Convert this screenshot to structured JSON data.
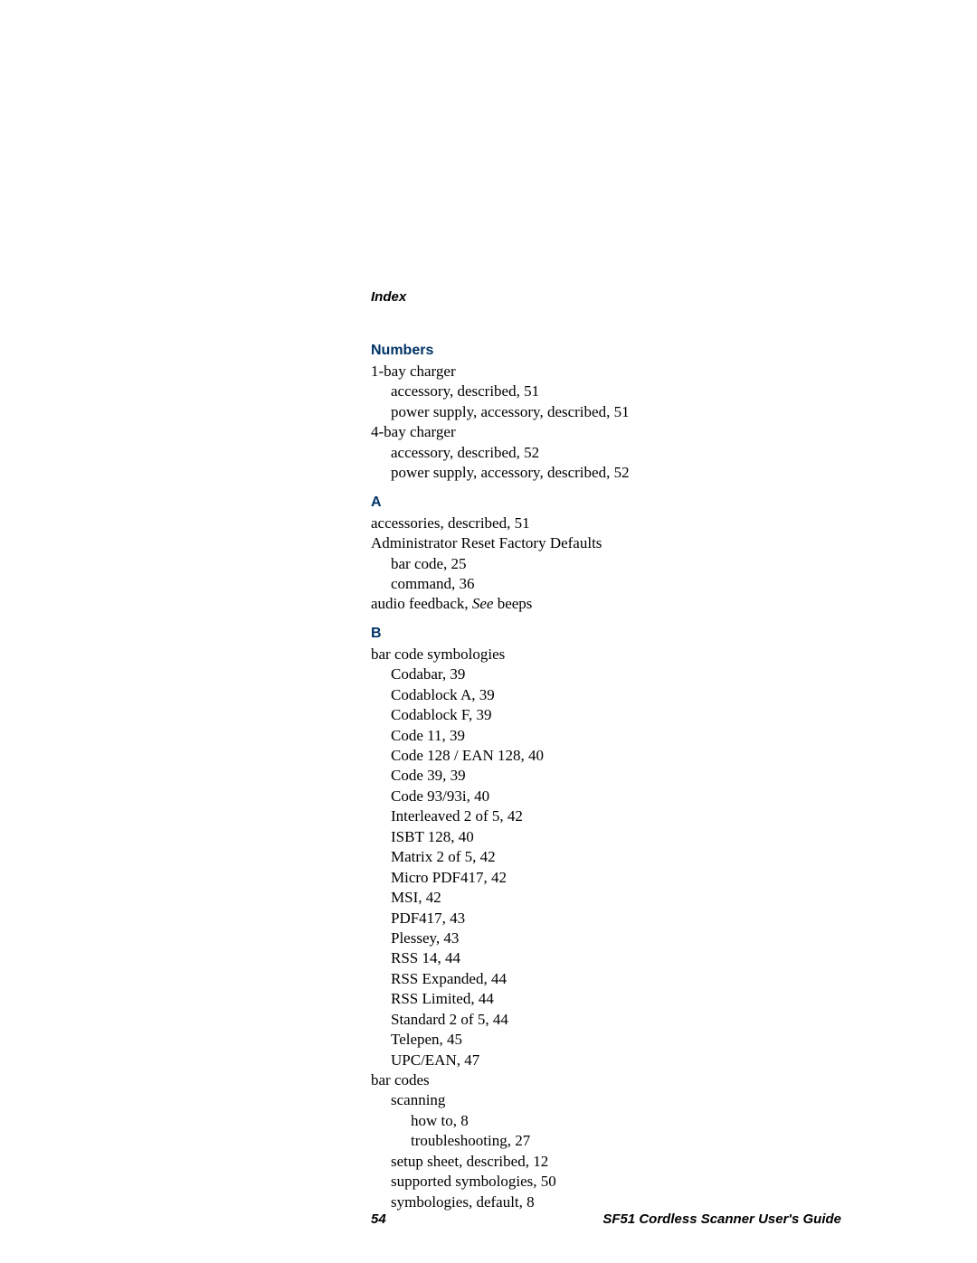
{
  "header": {
    "title": "Index"
  },
  "sections": {
    "numbers": {
      "letter": "Numbers",
      "entries": {
        "e0": "1-bay charger",
        "e1": "accessory, described, 51",
        "e2": "power supply, accessory, described, 51",
        "e3": "4-bay charger",
        "e4": "accessory, described, 52",
        "e5": "power supply, accessory, described, 52"
      }
    },
    "a": {
      "letter": "A",
      "entries": {
        "e0": "accessories, described, 51",
        "e1": "Administrator Reset Factory Defaults",
        "e2": "bar code, 25",
        "e3": "command, 36",
        "e4_pre": "audio feedback, ",
        "e4_see": "See",
        "e4_post": " beeps"
      }
    },
    "b": {
      "letter": "B",
      "entries": {
        "e0": "bar code symbologies",
        "e1": "Codabar, 39",
        "e2": "Codablock A, 39",
        "e3": "Codablock F, 39",
        "e4": "Code 11, 39",
        "e5": "Code 128 / EAN 128, 40",
        "e6": "Code 39, 39",
        "e7": "Code 93/93i, 40",
        "e8": "Interleaved 2 of 5, 42",
        "e9": "ISBT 128, 40",
        "e10": "Matrix 2 of 5, 42",
        "e11": "Micro PDF417, 42",
        "e12": "MSI, 42",
        "e13": "PDF417, 43",
        "e14": "Plessey, 43",
        "e15": "RSS 14, 44",
        "e16": "RSS Expanded, 44",
        "e17": "RSS Limited, 44",
        "e18": "Standard 2 of 5, 44",
        "e19": "Telepen, 45",
        "e20": "UPC/EAN, 47",
        "e21": "bar codes",
        "e22": "scanning",
        "e23": "how to, 8",
        "e24": "troubleshooting, 27",
        "e25": "setup sheet, described, 12",
        "e26": "supported symbologies, 50",
        "e27": "symbologies, default, 8"
      }
    }
  },
  "footer": {
    "page": "54",
    "title": "SF51 Cordless Scanner User's Guide"
  }
}
